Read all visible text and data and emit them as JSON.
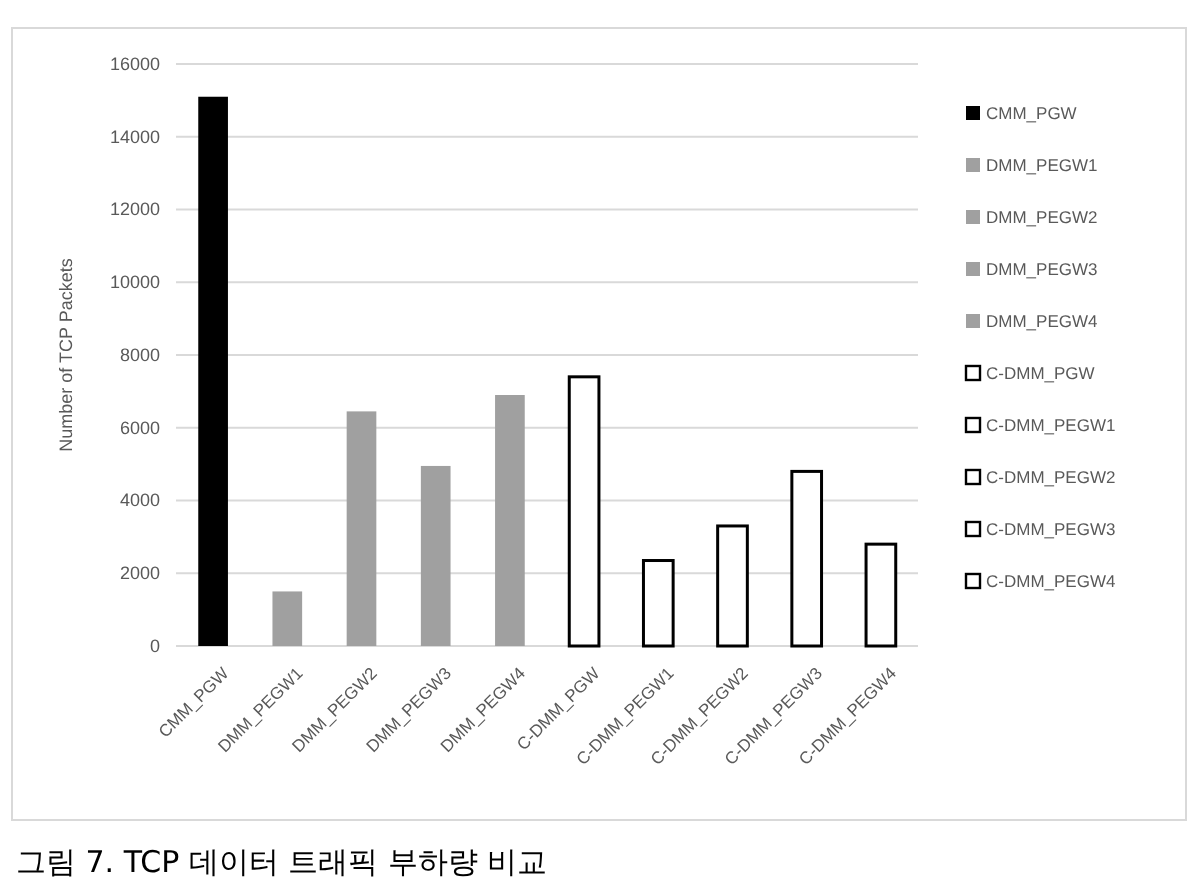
{
  "chart_data": {
    "type": "bar",
    "ylabel": "Number of TCP Packets",
    "categories": [
      "CMM_PGW",
      "DMM_PEGW1",
      "DMM_PEGW2",
      "DMM_PEGW3",
      "DMM_PEGW4",
      "C-DMM_PGW",
      "C-DMM_PEGW1",
      "C-DMM_PEGW2",
      "C-DMM_PEGW3",
      "C-DMM_PEGW4"
    ],
    "series": [
      {
        "name": "CMM_PGW",
        "color": "#000000",
        "values": [
          15100,
          null,
          null,
          null,
          null,
          null,
          null,
          null,
          null,
          null
        ]
      },
      {
        "name": "DMM_PEGW1",
        "color": "#a0a0a0",
        "values": [
          null,
          1500,
          null,
          null,
          null,
          null,
          null,
          null,
          null,
          null
        ]
      },
      {
        "name": "DMM_PEGW2",
        "color": "#a0a0a0",
        "values": [
          null,
          null,
          6450,
          null,
          null,
          null,
          null,
          null,
          null,
          null
        ]
      },
      {
        "name": "DMM_PEGW3",
        "color": "#a0a0a0",
        "values": [
          null,
          null,
          null,
          4950,
          null,
          null,
          null,
          null,
          null,
          null
        ]
      },
      {
        "name": "DMM_PEGW4",
        "color": "#a0a0a0",
        "values": [
          null,
          null,
          null,
          null,
          6900,
          null,
          null,
          null,
          null,
          null
        ]
      },
      {
        "name": "C-DMM_PGW",
        "color": "#ffffff",
        "values": [
          null,
          null,
          null,
          null,
          null,
          7400,
          null,
          null,
          null,
          null
        ]
      },
      {
        "name": "C-DMM_PEGW1",
        "color": "#ffffff",
        "values": [
          null,
          null,
          null,
          null,
          null,
          null,
          2350,
          null,
          null,
          null
        ]
      },
      {
        "name": "C-DMM_PEGW2",
        "color": "#ffffff",
        "values": [
          null,
          null,
          null,
          null,
          null,
          null,
          null,
          3300,
          null,
          null
        ]
      },
      {
        "name": "C-DMM_PEGW3",
        "color": "#ffffff",
        "values": [
          null,
          null,
          null,
          null,
          null,
          null,
          null,
          null,
          4800,
          null
        ]
      },
      {
        "name": "C-DMM_PEGW4",
        "color": "#ffffff",
        "values": [
          null,
          null,
          null,
          null,
          null,
          null,
          null,
          null,
          null,
          2800
        ]
      }
    ],
    "ylim": [
      0,
      16000
    ],
    "yticks": [
      0,
      2000,
      4000,
      6000,
      8000,
      10000,
      12000,
      14000,
      16000
    ],
    "grid": "y",
    "legend": "right",
    "annotations": [
      "그림 7. TCP 데이터 트래픽 부하량 비교"
    ]
  }
}
